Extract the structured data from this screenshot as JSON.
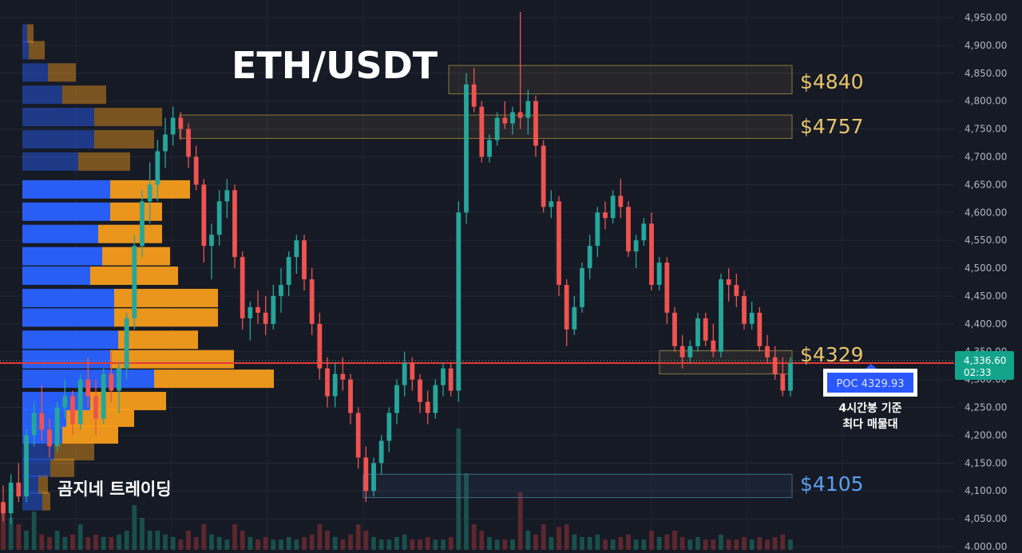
{
  "title": "ETH/USDT",
  "watermark": "곰지네 트레이딩",
  "colors": {
    "background": "#161a25",
    "bull": "#26a69a",
    "bear": "#ef5350",
    "volume_up": "#1a5a52",
    "volume_down": "#6a2a30",
    "profile_blue": "#2962ff",
    "profile_orange": "#f59c1a",
    "level_gold": "#e9c46a",
    "level_blue": "#5aa0f0",
    "price_line": "#e53935",
    "last_price_bg": "#13a38a",
    "poc_bg": "#2b57ff"
  },
  "price_axis": {
    "ticks": [
      "4,950.00",
      "4,900.00",
      "4,850.00",
      "4,800.00",
      "4,750.00",
      "4,700.00",
      "4,650.00",
      "4,600.00",
      "4,550.00",
      "4,500.00",
      "4,450.00",
      "4,400.00",
      "4,350.00",
      "4,300.00",
      "4,250.00",
      "4,200.00",
      "4,150.00",
      "4,100.00",
      "4,050.00",
      "4,000.00"
    ]
  },
  "last_price": {
    "value": "4,336.60",
    "countdown": "02:33"
  },
  "poc": {
    "label": "POC  4329.93",
    "note_line1": "4시간봉 기준",
    "note_line2": "최다 매물대"
  },
  "levels": [
    {
      "label": "$4840",
      "color": "gold"
    },
    {
      "label": "$4757",
      "color": "gold"
    },
    {
      "label": "$4329",
      "color": "gold"
    },
    {
      "label": "$4105",
      "color": "blue"
    }
  ],
  "chart_data": {
    "type": "candlestick",
    "title": "ETH/USDT",
    "ylim": [
      4000,
      4960
    ],
    "grid": true,
    "level_zones": [
      {
        "label": "$4840",
        "low": 4813,
        "high": 4864
      },
      {
        "label": "$4757",
        "low": 4733,
        "high": 4775
      },
      {
        "label": "$4329",
        "low": 4310,
        "high": 4352
      },
      {
        "label": "$4105",
        "low": 4088,
        "high": 4130
      }
    ],
    "volume_profile": {
      "bins_low_to_high": [
        4080,
        4110,
        4140,
        4170,
        4200,
        4230,
        4260,
        4300,
        4335,
        4370,
        4410,
        4445,
        4485,
        4520,
        4560,
        4600,
        4640,
        4690,
        4730,
        4770,
        4810,
        4850,
        4890,
        4920
      ],
      "buy": [
        25,
        20,
        35,
        40,
        50,
        55,
        85,
        165,
        110,
        120,
        115,
        115,
        85,
        100,
        95,
        110,
        110,
        70,
        90,
        90,
        50,
        32,
        8,
        6
      ],
      "sell": [
        10,
        12,
        30,
        50,
        70,
        85,
        95,
        150,
        155,
        100,
        130,
        130,
        110,
        85,
        80,
        65,
        100,
        65,
        75,
        85,
        55,
        35,
        20,
        8
      ]
    },
    "candles": [
      [
        4080,
        4110,
        4045,
        4060
      ],
      [
        4060,
        4130,
        4040,
        4115
      ],
      [
        4115,
        4150,
        4080,
        4090
      ],
      [
        4090,
        4210,
        4080,
        4200
      ],
      [
        4200,
        4260,
        4180,
        4240
      ],
      [
        4240,
        4290,
        4190,
        4210
      ],
      [
        4210,
        4230,
        4160,
        4180
      ],
      [
        4180,
        4260,
        4170,
        4250
      ],
      [
        4250,
        4300,
        4230,
        4270
      ],
      [
        4270,
        4280,
        4200,
        4220
      ],
      [
        4220,
        4310,
        4210,
        4300
      ],
      [
        4300,
        4340,
        4250,
        4270
      ],
      [
        4270,
        4300,
        4200,
        4230
      ],
      [
        4230,
        4320,
        4220,
        4310
      ],
      [
        4310,
        4350,
        4260,
        4280
      ],
      [
        4280,
        4330,
        4240,
        4320
      ],
      [
        4320,
        4420,
        4300,
        4410
      ],
      [
        4410,
        4560,
        4390,
        4540
      ],
      [
        4540,
        4640,
        4520,
        4620
      ],
      [
        4620,
        4690,
        4580,
        4650
      ],
      [
        4650,
        4730,
        4620,
        4710
      ],
      [
        4710,
        4770,
        4680,
        4740
      ],
      [
        4740,
        4790,
        4720,
        4770
      ],
      [
        4770,
        4780,
        4730,
        4750
      ],
      [
        4750,
        4760,
        4680,
        4700
      ],
      [
        4700,
        4720,
        4640,
        4650
      ],
      [
        4650,
        4660,
        4510,
        4540
      ],
      [
        4540,
        4580,
        4480,
        4560
      ],
      [
        4560,
        4640,
        4540,
        4620
      ],
      [
        4620,
        4660,
        4590,
        4640
      ],
      [
        4640,
        4650,
        4500,
        4520
      ],
      [
        4520,
        4530,
        4390,
        4410
      ],
      [
        4410,
        4440,
        4370,
        4430
      ],
      [
        4430,
        4460,
        4400,
        4420
      ],
      [
        4420,
        4450,
        4380,
        4400
      ],
      [
        4400,
        4470,
        4390,
        4450
      ],
      [
        4450,
        4500,
        4420,
        4470
      ],
      [
        4470,
        4530,
        4450,
        4520
      ],
      [
        4520,
        4560,
        4490,
        4550
      ],
      [
        4550,
        4560,
        4460,
        4480
      ],
      [
        4480,
        4500,
        4380,
        4400
      ],
      [
        4400,
        4420,
        4300,
        4320
      ],
      [
        4320,
        4340,
        4250,
        4270
      ],
      [
        4270,
        4330,
        4250,
        4310
      ],
      [
        4310,
        4340,
        4280,
        4300
      ],
      [
        4300,
        4310,
        4220,
        4240
      ],
      [
        4240,
        4250,
        4140,
        4160
      ],
      [
        4160,
        4180,
        4080,
        4100
      ],
      [
        4100,
        4160,
        4090,
        4150
      ],
      [
        4150,
        4200,
        4130,
        4190
      ],
      [
        4190,
        4250,
        4170,
        4240
      ],
      [
        4240,
        4300,
        4220,
        4290
      ],
      [
        4290,
        4350,
        4270,
        4330
      ],
      [
        4330,
        4340,
        4280,
        4300
      ],
      [
        4300,
        4310,
        4240,
        4260
      ],
      [
        4260,
        4280,
        4220,
        4240
      ],
      [
        4240,
        4300,
        4230,
        4290
      ],
      [
        4290,
        4330,
        4270,
        4320
      ],
      [
        4320,
        4330,
        4270,
        4280
      ],
      [
        4280,
        4620,
        4260,
        4600
      ],
      [
        4600,
        4850,
        4580,
        4830
      ],
      [
        4830,
        4860,
        4780,
        4790
      ],
      [
        4790,
        4800,
        4690,
        4700
      ],
      [
        4700,
        4740,
        4690,
        4730
      ],
      [
        4730,
        4780,
        4720,
        4770
      ],
      [
        4770,
        4800,
        4750,
        4760
      ],
      [
        4760,
        4790,
        4740,
        4780
      ],
      [
        4780,
        4960,
        4750,
        4770
      ],
      [
        4770,
        4820,
        4740,
        4800
      ],
      [
        4800,
        4810,
        4700,
        4720
      ],
      [
        4720,
        4730,
        4600,
        4610
      ],
      [
        4610,
        4640,
        4590,
        4620
      ],
      [
        4620,
        4630,
        4450,
        4470
      ],
      [
        4470,
        4480,
        4360,
        4390
      ],
      [
        4390,
        4450,
        4380,
        4430
      ],
      [
        4430,
        4510,
        4420,
        4500
      ],
      [
        4500,
        4560,
        4480,
        4540
      ],
      [
        4540,
        4610,
        4520,
        4600
      ],
      [
        4600,
        4620,
        4570,
        4590
      ],
      [
        4590,
        4640,
        4580,
        4630
      ],
      [
        4630,
        4660,
        4590,
        4610
      ],
      [
        4610,
        4620,
        4520,
        4530
      ],
      [
        4530,
        4560,
        4500,
        4550
      ],
      [
        4550,
        4590,
        4540,
        4580
      ],
      [
        4580,
        4600,
        4460,
        4470
      ],
      [
        4470,
        4520,
        4460,
        4510
      ],
      [
        4510,
        4520,
        4400,
        4420
      ],
      [
        4420,
        4430,
        4350,
        4360
      ],
      [
        4360,
        4380,
        4320,
        4340
      ],
      [
        4340,
        4370,
        4330,
        4360
      ],
      [
        4360,
        4420,
        4350,
        4410
      ],
      [
        4410,
        4420,
        4360,
        4370
      ],
      [
        4370,
        4400,
        4340,
        4350
      ],
      [
        4350,
        4490,
        4340,
        4480
      ],
      [
        4480,
        4500,
        4440,
        4470
      ],
      [
        4470,
        4490,
        4430,
        4450
      ],
      [
        4450,
        4460,
        4390,
        4400
      ],
      [
        4400,
        4440,
        4390,
        4420
      ],
      [
        4420,
        4430,
        4350,
        4360
      ],
      [
        4360,
        4380,
        4330,
        4340
      ],
      [
        4340,
        4360,
        4300,
        4310
      ],
      [
        4310,
        4340,
        4270,
        4280
      ],
      [
        4280,
        4340,
        4270,
        4330
      ]
    ],
    "volume": [
      0.35,
      0.25,
      0.2,
      0.15,
      0.3,
      0.12,
      0.1,
      0.15,
      0.1,
      0.12,
      0.2,
      0.1,
      0.12,
      0.1,
      0.1,
      0.12,
      0.15,
      0.35,
      0.25,
      0.15,
      0.15,
      0.12,
      0.1,
      0.08,
      0.15,
      0.1,
      0.2,
      0.12,
      0.1,
      0.08,
      0.2,
      0.15,
      0.1,
      0.08,
      0.1,
      0.08,
      0.08,
      0.1,
      0.08,
      0.1,
      0.12,
      0.2,
      0.15,
      0.1,
      0.08,
      0.12,
      0.2,
      0.15,
      0.1,
      0.08,
      0.08,
      0.1,
      0.12,
      0.08,
      0.08,
      0.1,
      0.08,
      0.08,
      0.1,
      0.95,
      0.6,
      0.2,
      0.15,
      0.1,
      0.08,
      0.08,
      0.08,
      0.45,
      0.15,
      0.12,
      0.2,
      0.1,
      0.18,
      0.2,
      0.12,
      0.1,
      0.1,
      0.12,
      0.08,
      0.08,
      0.1,
      0.12,
      0.08,
      0.08,
      0.15,
      0.1,
      0.12,
      0.15,
      0.1,
      0.08,
      0.1,
      0.08,
      0.08,
      0.12,
      0.08,
      0.08,
      0.1,
      0.08,
      0.1,
      0.08,
      0.1,
      0.12,
      0.08
    ]
  }
}
